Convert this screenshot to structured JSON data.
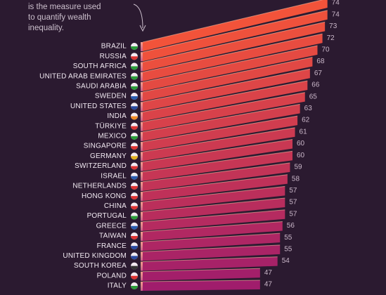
{
  "chart_data": {
    "type": "bar",
    "subtitle_lines": [
      "is the measure used",
      "to quantify wealth",
      "inequality."
    ],
    "categories": [
      "BRAZIL",
      "RUSSIA",
      "SOUTH AFRICA",
      "UNITED ARAB EMIRATES",
      "SAUDI ARABIA",
      "SWEDEN",
      "UNITED STATES",
      "INDIA",
      "TÜRKIYE",
      "MEXICO",
      "SINGAPORE",
      "GERMANY",
      "SWITZERLAND",
      "ISRAEL",
      "NETHERLANDS",
      "HONG KONG",
      "CHINA",
      "PORTUGAL",
      "GREECE",
      "TAIWAN",
      "FRANCE",
      "UNITED KINGDOM",
      "SOUTH KOREA",
      "POLAND",
      "ITALY"
    ],
    "values": [
      74,
      74,
      73,
      72,
      70,
      68,
      67,
      66,
      65,
      63,
      62,
      61,
      60,
      60,
      59,
      58,
      57,
      57,
      57,
      56,
      55,
      55,
      54,
      47,
      47
    ],
    "colors": [
      "#f2533a",
      "#a01d6c"
    ]
  }
}
